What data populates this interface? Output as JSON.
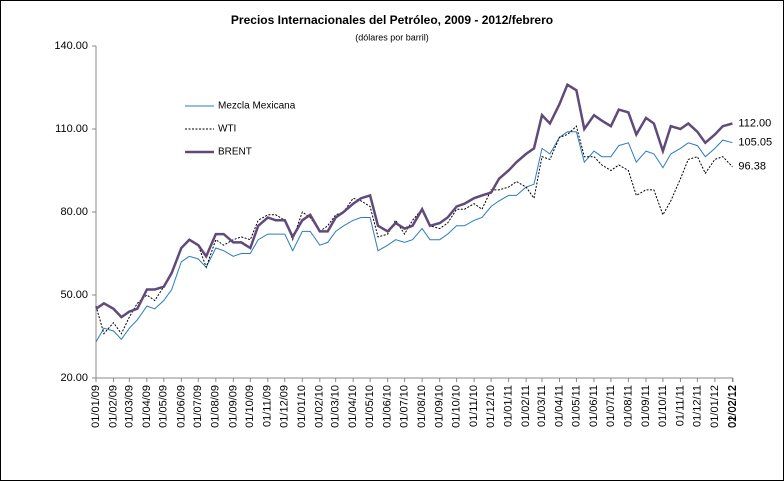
{
  "chart_data": {
    "type": "line",
    "title": "Precios Internacionales del Petróleo, 2009 - 2012/febrero",
    "subtitle": "(dólares por barril)",
    "x": [
      "2009-01-01",
      "2009-01-15",
      "2009-02-01",
      "2009-02-15",
      "2009-03-01",
      "2009-03-15",
      "2009-04-01",
      "2009-04-15",
      "2009-05-01",
      "2009-05-15",
      "2009-06-01",
      "2009-06-15",
      "2009-07-01",
      "2009-07-15",
      "2009-08-01",
      "2009-08-15",
      "2009-09-01",
      "2009-09-15",
      "2009-10-01",
      "2009-10-15",
      "2009-11-01",
      "2009-11-15",
      "2009-12-01",
      "2009-12-15",
      "2010-01-01",
      "2010-01-15",
      "2010-02-01",
      "2010-02-15",
      "2010-03-01",
      "2010-03-15",
      "2010-04-01",
      "2010-04-15",
      "2010-05-01",
      "2010-05-15",
      "2010-06-01",
      "2010-06-15",
      "2010-07-01",
      "2010-07-15",
      "2010-08-01",
      "2010-08-15",
      "2010-09-01",
      "2010-09-15",
      "2010-10-01",
      "2010-10-15",
      "2010-11-01",
      "2010-11-15",
      "2010-12-01",
      "2010-12-15",
      "2011-01-01",
      "2011-01-15",
      "2011-02-01",
      "2011-02-15",
      "2011-03-01",
      "2011-03-15",
      "2011-04-01",
      "2011-04-15",
      "2011-05-01",
      "2011-05-15",
      "2011-06-01",
      "2011-06-15",
      "2011-07-01",
      "2011-07-15",
      "2011-08-01",
      "2011-08-15",
      "2011-09-01",
      "2011-09-15",
      "2011-10-01",
      "2011-10-15",
      "2011-11-01",
      "2011-11-15",
      "2011-12-01",
      "2011-12-15",
      "2012-01-01",
      "2012-01-15",
      "2012-02-01"
    ],
    "series": [
      {
        "name": "Mezcla Mexicana",
        "color": "#2a7dc0",
        "width": 1,
        "dash": "solid",
        "values": [
          33,
          38,
          37,
          34,
          38,
          41,
          46,
          45,
          48,
          52,
          62,
          64,
          63,
          60,
          67,
          66,
          64,
          65,
          65,
          70,
          72,
          72,
          72,
          66,
          73,
          73,
          68,
          69,
          73,
          75,
          77,
          78,
          78,
          66,
          68,
          70,
          69,
          70,
          74,
          70,
          70,
          72,
          75,
          75,
          77,
          78,
          82,
          84,
          86,
          86,
          89,
          90,
          103,
          101,
          107,
          109,
          109,
          98,
          102,
          100,
          100,
          104,
          105,
          98,
          102,
          101,
          96,
          101,
          103,
          105,
          104,
          100,
          103,
          106,
          105.05
        ],
        "value_labels": [
          null,
          null,
          null,
          null,
          null,
          null,
          null,
          null,
          null,
          null,
          null,
          null,
          null,
          null,
          null,
          null,
          null,
          null,
          null,
          null,
          null,
          null,
          null,
          null,
          null,
          null,
          null,
          null,
          null,
          null,
          null,
          null,
          null,
          null,
          null,
          null,
          null,
          null,
          null,
          null,
          null,
          null,
          null,
          null,
          null,
          null,
          null,
          null,
          null,
          null,
          null,
          null,
          null,
          null,
          null,
          null,
          null,
          null,
          null,
          null,
          null,
          null,
          null,
          null,
          null,
          null,
          null,
          null,
          null,
          null,
          null,
          null,
          null,
          null,
          "105.05"
        ]
      },
      {
        "name": "WTI",
        "color": "#000000",
        "width": 1,
        "dash": "dotted",
        "values": [
          46,
          36,
          40,
          36,
          42,
          47,
          50,
          48,
          53,
          58,
          67,
          70,
          68,
          60,
          70,
          68,
          70,
          71,
          70,
          77,
          79,
          79,
          77,
          70,
          80,
          78,
          73,
          75,
          79,
          80,
          85,
          84,
          82,
          71,
          72,
          77,
          72,
          77,
          81,
          75,
          74,
          76,
          81,
          81,
          83,
          81,
          88,
          88,
          89,
          91,
          89,
          85,
          100,
          99,
          107,
          108,
          111,
          100,
          100,
          97,
          95,
          97,
          95,
          86,
          88,
          88,
          79,
          84,
          92,
          99,
          100,
          94,
          99,
          100,
          96.38
        ],
        "value_labels": [
          null,
          null,
          null,
          null,
          null,
          null,
          null,
          null,
          null,
          null,
          null,
          null,
          null,
          null,
          null,
          null,
          null,
          null,
          null,
          null,
          null,
          null,
          null,
          null,
          null,
          null,
          null,
          null,
          null,
          null,
          null,
          null,
          null,
          null,
          null,
          null,
          null,
          null,
          null,
          null,
          null,
          null,
          null,
          null,
          null,
          null,
          null,
          null,
          null,
          null,
          null,
          null,
          null,
          null,
          null,
          null,
          null,
          null,
          null,
          null,
          null,
          null,
          null,
          null,
          null,
          null,
          null,
          null,
          null,
          null,
          null,
          null,
          null,
          null,
          "96.38"
        ]
      },
      {
        "name": "BRENT",
        "color": "#604a7b",
        "width": 2.5,
        "dash": "solid",
        "values": [
          45,
          47,
          45,
          42,
          44,
          45,
          52,
          52,
          53,
          58,
          67,
          70,
          68,
          64,
          72,
          72,
          69,
          69,
          67,
          75,
          78,
          77,
          77,
          71,
          77,
          79,
          73,
          73,
          78,
          80,
          83,
          85,
          86,
          75,
          73,
          76,
          74,
          75,
          81,
          75,
          76,
          78,
          82,
          83,
          85,
          86,
          87,
          92,
          95,
          98,
          101,
          103,
          115,
          112,
          119,
          126,
          124,
          110,
          115,
          113,
          111,
          117,
          116,
          108,
          114,
          112,
          102,
          111,
          110,
          112,
          109,
          105,
          108,
          111,
          112
        ],
        "value_labels": [
          null,
          null,
          null,
          null,
          null,
          null,
          null,
          null,
          null,
          null,
          null,
          null,
          null,
          null,
          null,
          null,
          null,
          null,
          null,
          null,
          null,
          null,
          null,
          null,
          null,
          null,
          null,
          null,
          null,
          null,
          null,
          null,
          null,
          null,
          null,
          null,
          null,
          null,
          null,
          null,
          null,
          null,
          null,
          null,
          null,
          null,
          null,
          null,
          null,
          null,
          null,
          null,
          null,
          null,
          null,
          null,
          null,
          null,
          null,
          null,
          null,
          null,
          null,
          null,
          null,
          null,
          null,
          null,
          null,
          null,
          null,
          null,
          null,
          null,
          "112.00"
        ]
      }
    ],
    "ylim": [
      20,
      140
    ],
    "yticks": [
      {
        "value": 20,
        "label": "20.00"
      },
      {
        "value": 50,
        "label": "50.00"
      },
      {
        "value": 80,
        "label": "80.00"
      },
      {
        "value": 110,
        "label": "110.00"
      },
      {
        "value": 140,
        "label": "140.00"
      }
    ],
    "xlim": [
      "2009-01-01",
      "2012-02-02"
    ],
    "xticks": [
      {
        "value": "2009-01-01",
        "label": "01/01/09"
      },
      {
        "value": "2009-02-01",
        "label": "01/02/09"
      },
      {
        "value": "2009-03-01",
        "label": "01/03/09"
      },
      {
        "value": "2009-04-01",
        "label": "01/04/09"
      },
      {
        "value": "2009-05-01",
        "label": "01/05/09"
      },
      {
        "value": "2009-06-01",
        "label": "01/06/09"
      },
      {
        "value": "2009-07-01",
        "label": "01/07/09"
      },
      {
        "value": "2009-08-01",
        "label": "01/08/09"
      },
      {
        "value": "2009-09-01",
        "label": "01/09/09"
      },
      {
        "value": "2009-10-01",
        "label": "01/10/09"
      },
      {
        "value": "2009-11-01",
        "label": "01/11/09"
      },
      {
        "value": "2009-12-01",
        "label": "01/12/09"
      },
      {
        "value": "2010-01-01",
        "label": "01/01/10"
      },
      {
        "value": "2010-02-01",
        "label": "01/02/10"
      },
      {
        "value": "2010-03-01",
        "label": "01/03/10"
      },
      {
        "value": "2010-04-01",
        "label": "01/04/10"
      },
      {
        "value": "2010-05-01",
        "label": "01/05/10"
      },
      {
        "value": "2010-06-01",
        "label": "01/06/10"
      },
      {
        "value": "2010-07-01",
        "label": "01/07/10"
      },
      {
        "value": "2010-08-01",
        "label": "01/08/10"
      },
      {
        "value": "2010-09-01",
        "label": "01/09/10"
      },
      {
        "value": "2010-10-01",
        "label": "01/10/10"
      },
      {
        "value": "2010-11-01",
        "label": "01/11/10"
      },
      {
        "value": "2010-12-01",
        "label": "01/12/10"
      },
      {
        "value": "2011-01-01",
        "label": "01/01/11"
      },
      {
        "value": "2011-02-01",
        "label": "01/02/11"
      },
      {
        "value": "2011-03-01",
        "label": "01/03/11"
      },
      {
        "value": "2011-04-01",
        "label": "01/04/11"
      },
      {
        "value": "2011-05-01",
        "label": "01/05/11"
      },
      {
        "value": "2011-06-01",
        "label": "01/06/11"
      },
      {
        "value": "2011-07-01",
        "label": "01/07/11"
      },
      {
        "value": "2011-08-01",
        "label": "01/08/11"
      },
      {
        "value": "2011-09-01",
        "label": "01/09/11"
      },
      {
        "value": "2011-10-01",
        "label": "01/10/11"
      },
      {
        "value": "2011-11-01",
        "label": "01/11/11"
      },
      {
        "value": "2011-12-01",
        "label": "01/12/11"
      },
      {
        "value": "2012-01-01",
        "label": "01/01/12"
      },
      {
        "value": "2012-02-01",
        "label": "01/02/12"
      },
      {
        "value": "2012-02-02",
        "label": "02/02/12"
      }
    ],
    "grid": false,
    "legend": "upper-left"
  }
}
